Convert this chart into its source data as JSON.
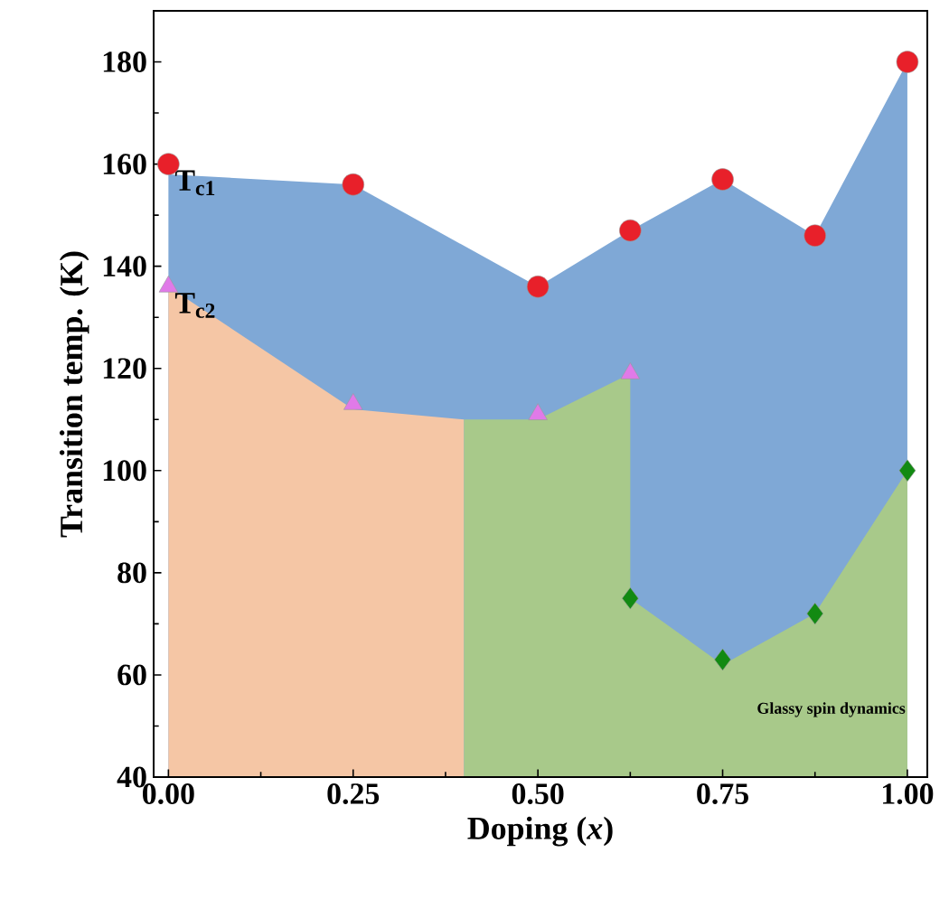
{
  "chart_data": {
    "type": "scatter",
    "xlabel": "Doping (*x*)",
    "ylabel": "Transition temp. (K)",
    "xlim": [
      -0.02,
      1.027
    ],
    "ylim": [
      40,
      190
    ],
    "xticks": [
      {
        "value": 0,
        "label": "0.00"
      },
      {
        "value": 0.25,
        "label": "0.25"
      },
      {
        "value": 0.5,
        "label": "0.50"
      },
      {
        "value": 0.75,
        "label": "0.75"
      },
      {
        "value": 1,
        "label": "1.00"
      }
    ],
    "yticks": [
      40,
      60,
      80,
      100,
      120,
      140,
      160,
      180
    ],
    "annotations": [
      "Glassy spin dynamics"
    ],
    "series": [
      {
        "type": "area",
        "color": "#7fa8d6",
        "x": [
          0,
          0.25,
          0.5,
          0.625,
          0.75,
          0.875,
          1
        ],
        "values": [
          158,
          156,
          136,
          147,
          157,
          146,
          180
        ]
      },
      {
        "type": "area",
        "color": "#f5c6a5",
        "x": [
          0,
          0.25,
          0.4
        ],
        "values": [
          136,
          112,
          110
        ]
      },
      {
        "type": "area",
        "color": "#a8c98a",
        "x": [
          0.4,
          0.5,
          0.625,
          0.625,
          0.75,
          0.875,
          1
        ],
        "values": [
          110,
          110,
          119,
          75,
          62,
          72,
          100
        ]
      },
      {
        "name": "T$_{c1}$",
        "color": "#e8202a",
        "marker": "circle",
        "x": [
          0,
          0.25,
          0.5,
          0.625,
          0.75,
          0.875,
          1
        ],
        "values": [
          160,
          156,
          136,
          147,
          157,
          146,
          180
        ]
      },
      {
        "name": "T$_{c2}$",
        "color": "#e07ae8",
        "marker": "triangle",
        "x": [
          0,
          0.25,
          0.5,
          0.625
        ],
        "values": [
          136,
          113,
          111,
          119
        ]
      },
      {
        "color": "#128a12",
        "marker": "diamond",
        "x": [
          0.625,
          0.75,
          0.875,
          1
        ],
        "values": [
          75,
          63,
          72,
          100
        ]
      }
    ]
  }
}
